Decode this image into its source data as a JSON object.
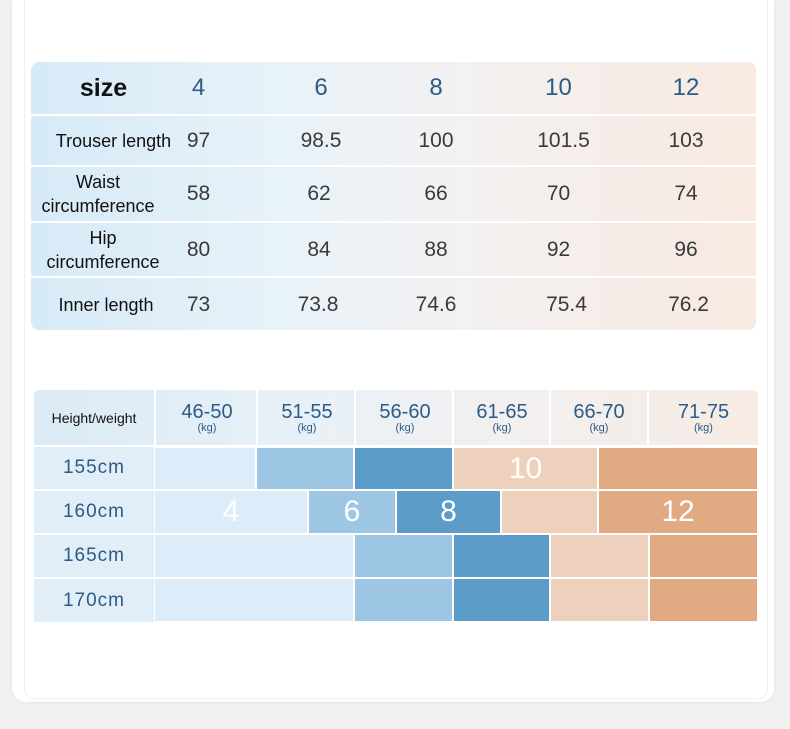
{
  "size_table": {
    "header": {
      "label": "size",
      "sizes": [
        "4",
        "6",
        "8",
        "10",
        "12"
      ]
    },
    "rows": [
      {
        "label": "Trouser length",
        "values": [
          "97",
          "98.5",
          "100",
          "101.5",
          "103"
        ]
      },
      {
        "label": "Waist circumference",
        "values": [
          "58",
          "62",
          "66",
          "70",
          "74"
        ]
      },
      {
        "label": "Hip circumference",
        "values": [
          "80",
          "84",
          "88",
          "92",
          "96"
        ]
      },
      {
        "label": "Inner length",
        "values": [
          "73",
          "73.8",
          "74.6",
          "75.4",
          "76.2"
        ]
      }
    ]
  },
  "height_weight": {
    "corner_label": "Height/weight",
    "unit": "(kg)",
    "weight_ranges": [
      "46-50",
      "51-55",
      "56-60",
      "61-65",
      "66-70",
      "71-75"
    ],
    "heights": [
      "155cm",
      "160cm",
      "165cm",
      "170cm"
    ],
    "size_labels": {
      "s4": "4",
      "s6": "6",
      "s8": "8",
      "s10": "10",
      "s12": "12"
    },
    "colors": {
      "size_4": "#dcecf8",
      "size_6": "#9dc6e4",
      "size_8": "#5c9cc8",
      "size_10": "#eed1bc",
      "size_12": "#e2aa83"
    }
  }
}
